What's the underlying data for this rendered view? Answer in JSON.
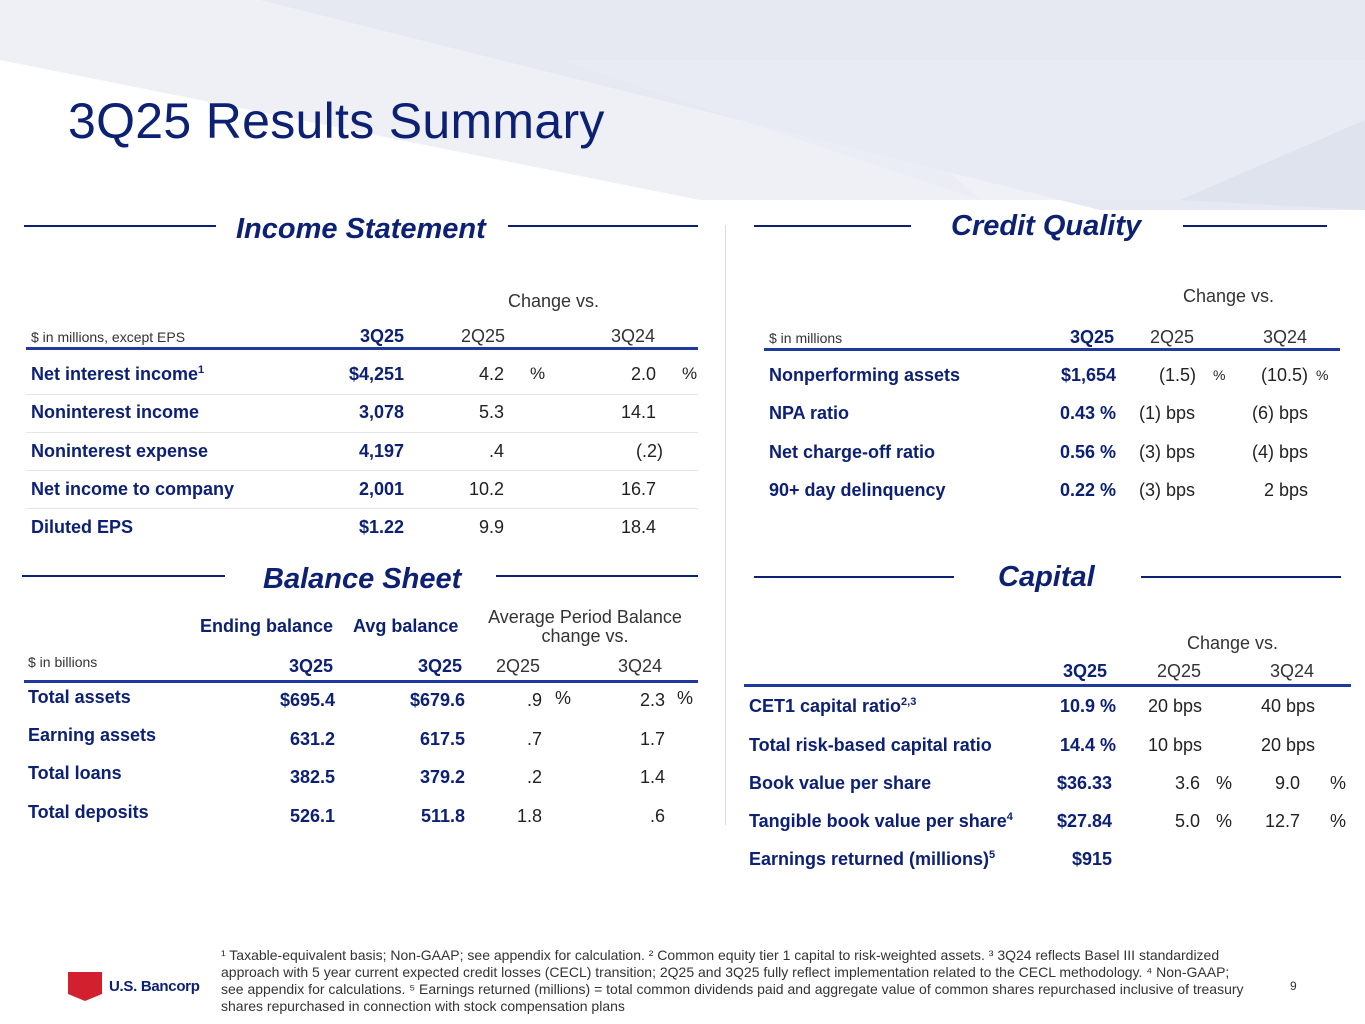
{
  "title": "3Q25 Results Summary",
  "colors": {
    "brand_navy": "#0c2074",
    "rule_blue": "#1f3a9c",
    "logo_red": "#d2202f"
  },
  "income": {
    "heading": "Income Statement",
    "change_vs": "Change vs.",
    "unit": "$ in millions, except EPS",
    "cols": [
      "3Q25",
      "2Q25",
      "3Q24"
    ],
    "pct": "%",
    "rows": [
      {
        "label": "Net interest income",
        "sup": "1",
        "v": "$4,251",
        "c1": "4.2",
        "c2": "2.0"
      },
      {
        "label": "Noninterest income",
        "sup": "",
        "v": "3,078",
        "c1": "5.3",
        "c2": "14.1"
      },
      {
        "label": "Noninterest expense",
        "sup": "",
        "v": "4,197",
        "c1": ".4",
        "c2": "(.2)"
      },
      {
        "label": "Net income to company",
        "sup": "",
        "v": "2,001",
        "c1": "10.2",
        "c2": "16.7"
      },
      {
        "label": "Diluted EPS",
        "sup": "",
        "v": "$1.22",
        "c1": "9.9",
        "c2": "18.4"
      }
    ]
  },
  "credit": {
    "heading": "Credit Quality",
    "change_vs": "Change vs.",
    "unit": "$ in millions",
    "cols": [
      "3Q25",
      "2Q25",
      "3Q24"
    ],
    "pct": "%",
    "rows": [
      {
        "label": "Nonperforming assets",
        "v": "$1,654",
        "c1": "(1.5)",
        "c2": "(10.5)"
      },
      {
        "label": "NPA ratio",
        "v": "0.43 %",
        "c1": "(1) bps",
        "c2": "(6) bps"
      },
      {
        "label": "Net charge-off ratio",
        "v": "0.56 %",
        "c1": "(3) bps",
        "c2": "(4) bps"
      },
      {
        "label": "90+ day delinquency",
        "v": "0.22 %",
        "c1": "(3) bps",
        "c2": "2 bps"
      }
    ]
  },
  "balance": {
    "heading": "Balance Sheet",
    "ending_balance": "Ending balance",
    "avg_balance": "Avg balance",
    "avg_period_line1": "Average Period Balance",
    "avg_period_line2": "change vs.",
    "unit": "$ in billions",
    "cols": [
      "3Q25",
      "3Q25",
      "2Q25",
      "3Q24"
    ],
    "pct": "%",
    "rows": [
      {
        "label": "Total assets",
        "e": "$695.4",
        "a": "$679.6",
        "c1": ".9",
        "c2": "2.3"
      },
      {
        "label": "Earning assets",
        "e": "631.2",
        "a": "617.5",
        "c1": ".7",
        "c2": "1.7"
      },
      {
        "label": "Total loans",
        "e": "382.5",
        "a": "379.2",
        "c1": ".2",
        "c2": "1.4"
      },
      {
        "label": "Total deposits",
        "e": "526.1",
        "a": "511.8",
        "c1": "1.8",
        "c2": ".6"
      }
    ]
  },
  "capital": {
    "heading": "Capital",
    "change_vs": "Change vs.",
    "cols": [
      "3Q25",
      "2Q25",
      "3Q24"
    ],
    "pct": "%",
    "rows": [
      {
        "label": "CET1 capital ratio",
        "sup": "2,3",
        "v": "10.9 %",
        "c1": "20 bps",
        "c2": "40 bps"
      },
      {
        "label": "Total risk-based capital ratio",
        "sup": "",
        "v": "14.4 %",
        "c1": "10 bps",
        "c2": "20 bps"
      },
      {
        "label": "Book value per share",
        "sup": "",
        "v": "$36.33",
        "c1": "3.6",
        "c2": "9.0"
      },
      {
        "label": "Tangible book value per share",
        "sup": "4",
        "v": "$27.84",
        "c1": "5.0",
        "c2": "12.7"
      },
      {
        "label": "Earnings returned (millions)",
        "sup": "5",
        "v": "$915",
        "c1": "",
        "c2": ""
      }
    ]
  },
  "footnote": "¹ Taxable-equivalent basis; Non-GAAP; see appendix for calculation. ² Common equity tier 1 capital to risk-weighted assets. ³ 3Q24 reflects Basel III standardized approach with 5 year current expected credit losses (CECL) transition; 2Q25 and 3Q25 fully reflect implementation related to the CECL methodology. ⁴ Non-GAAP; see appendix for calculations. ⁵ Earnings returned (millions) = total common dividends paid and aggregate value of common shares repurchased inclusive of treasury shares repurchased in connection with stock compensation plans",
  "logo_text": "U.S. Bancorp",
  "page_number": "9"
}
